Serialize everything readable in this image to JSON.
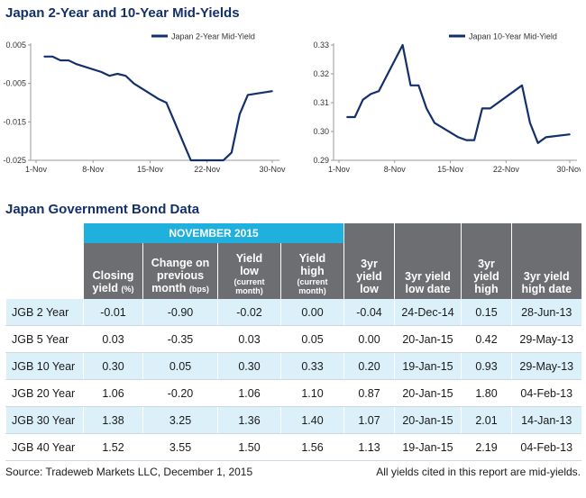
{
  "title_charts": "Japan 2-Year and 10-Year Mid-Yields",
  "title_table": "Japan Government Bond Data",
  "chart_data": [
    {
      "type": "line",
      "legend": "Japan 2-Year Mid-Yield",
      "legend_position": "top-right",
      "color": "#13306b",
      "x_ticks": [
        "1-Nov",
        "8-Nov",
        "15-Nov",
        "22-Nov",
        "30-Nov"
      ],
      "y_ticks": [
        "0.005",
        "-0.005",
        "-0.015",
        "-0.025"
      ],
      "ylim": [
        -0.025,
        0.005
      ],
      "grid": false,
      "series": [
        {
          "x": [
            "2-Nov",
            "3-Nov",
            "4-Nov",
            "5-Nov",
            "6-Nov",
            "9-Nov",
            "10-Nov",
            "11-Nov",
            "12-Nov",
            "13-Nov",
            "16-Nov",
            "17-Nov",
            "18-Nov",
            "19-Nov",
            "20-Nov",
            "24-Nov",
            "25-Nov",
            "26-Nov",
            "27-Nov",
            "30-Nov"
          ],
          "values": [
            0.002,
            0.002,
            0.001,
            0.001,
            0.0,
            -0.002,
            -0.003,
            -0.0025,
            -0.003,
            -0.005,
            -0.009,
            -0.01,
            -0.015,
            -0.02,
            -0.025,
            -0.025,
            -0.023,
            -0.013,
            -0.008,
            -0.007
          ]
        }
      ]
    },
    {
      "type": "line",
      "legend": "Japan 10-Year Mid-Yield",
      "legend_position": "top-right",
      "color": "#13306b",
      "x_ticks": [
        "1-Nov",
        "8-Nov",
        "15-Nov",
        "22-Nov",
        "30-Nov"
      ],
      "y_ticks": [
        "0.33",
        "0.32",
        "0.31",
        "0.30",
        "0.29"
      ],
      "ylim": [
        0.29,
        0.33
      ],
      "grid": false,
      "series": [
        {
          "x": [
            "2-Nov",
            "3-Nov",
            "4-Nov",
            "5-Nov",
            "6-Nov",
            "9-Nov",
            "10-Nov",
            "11-Nov",
            "12-Nov",
            "13-Nov",
            "16-Nov",
            "17-Nov",
            "18-Nov",
            "19-Nov",
            "20-Nov",
            "24-Nov",
            "25-Nov",
            "26-Nov",
            "27-Nov",
            "30-Nov"
          ],
          "values": [
            0.305,
            0.305,
            0.311,
            0.313,
            0.314,
            0.33,
            0.316,
            0.316,
            0.308,
            0.303,
            0.298,
            0.297,
            0.297,
            0.308,
            0.308,
            0.316,
            0.303,
            0.296,
            0.298,
            0.299
          ]
        }
      ]
    }
  ],
  "table": {
    "group_header": "NOVEMBER 2015",
    "columns": [
      {
        "main": "Closing",
        "second": "yield",
        "mini": "(%)"
      },
      {
        "main": "Change on",
        "second": "previous",
        "third": "month",
        "mini": "(bps)"
      },
      {
        "main": "Yield",
        "second": "low",
        "sub1": "(current",
        "sub2": "month)"
      },
      {
        "main": "Yield",
        "second": "high",
        "sub1": "(current",
        "sub2": "month)"
      },
      {
        "main": "3yr",
        "second": "yield",
        "third": "low"
      },
      {
        "main": "3yr yield",
        "second": "low date"
      },
      {
        "main": "3yr",
        "second": "yield",
        "third": "high"
      },
      {
        "main": "3yr yield",
        "second": "high date"
      }
    ],
    "rows": [
      {
        "name": "JGB 2 Year",
        "cells": [
          "-0.01",
          "-0.90",
          "-0.02",
          "0.00",
          "-0.04",
          "24-Dec-14",
          "0.15",
          "28-Jun-13"
        ]
      },
      {
        "name": "JGB 5 Year",
        "cells": [
          "0.03",
          "-0.35",
          "0.03",
          "0.05",
          "0.00",
          "20-Jan-15",
          "0.42",
          "29-May-13"
        ]
      },
      {
        "name": "JGB 10 Year",
        "cells": [
          "0.30",
          "0.05",
          "0.30",
          "0.33",
          "0.20",
          "19-Jan-15",
          "0.93",
          "29-May-13"
        ]
      },
      {
        "name": "JGB 20 Year",
        "cells": [
          "1.06",
          "-0.20",
          "1.06",
          "1.10",
          "0.87",
          "20-Jan-15",
          "1.80",
          "04-Feb-13"
        ]
      },
      {
        "name": "JGB 30 Year",
        "cells": [
          "1.38",
          "3.25",
          "1.36",
          "1.40",
          "1.07",
          "20-Jan-15",
          "2.01",
          "14-Jan-13"
        ]
      },
      {
        "name": "JGB 40 Year",
        "cells": [
          "1.52",
          "3.55",
          "1.50",
          "1.56",
          "1.13",
          "19-Jan-15",
          "2.19",
          "04-Feb-13"
        ]
      }
    ]
  },
  "footer": {
    "source": "Source: Tradeweb Markets LLC, December 1, 2015",
    "note": "All yields cited in this report are mid-yields."
  },
  "colors": {
    "title": "#13306b",
    "line": "#13306b",
    "group_header_bg": "#1fb0de",
    "header_bg": "#6d6e71",
    "row_shade": "#dcf0f9"
  }
}
